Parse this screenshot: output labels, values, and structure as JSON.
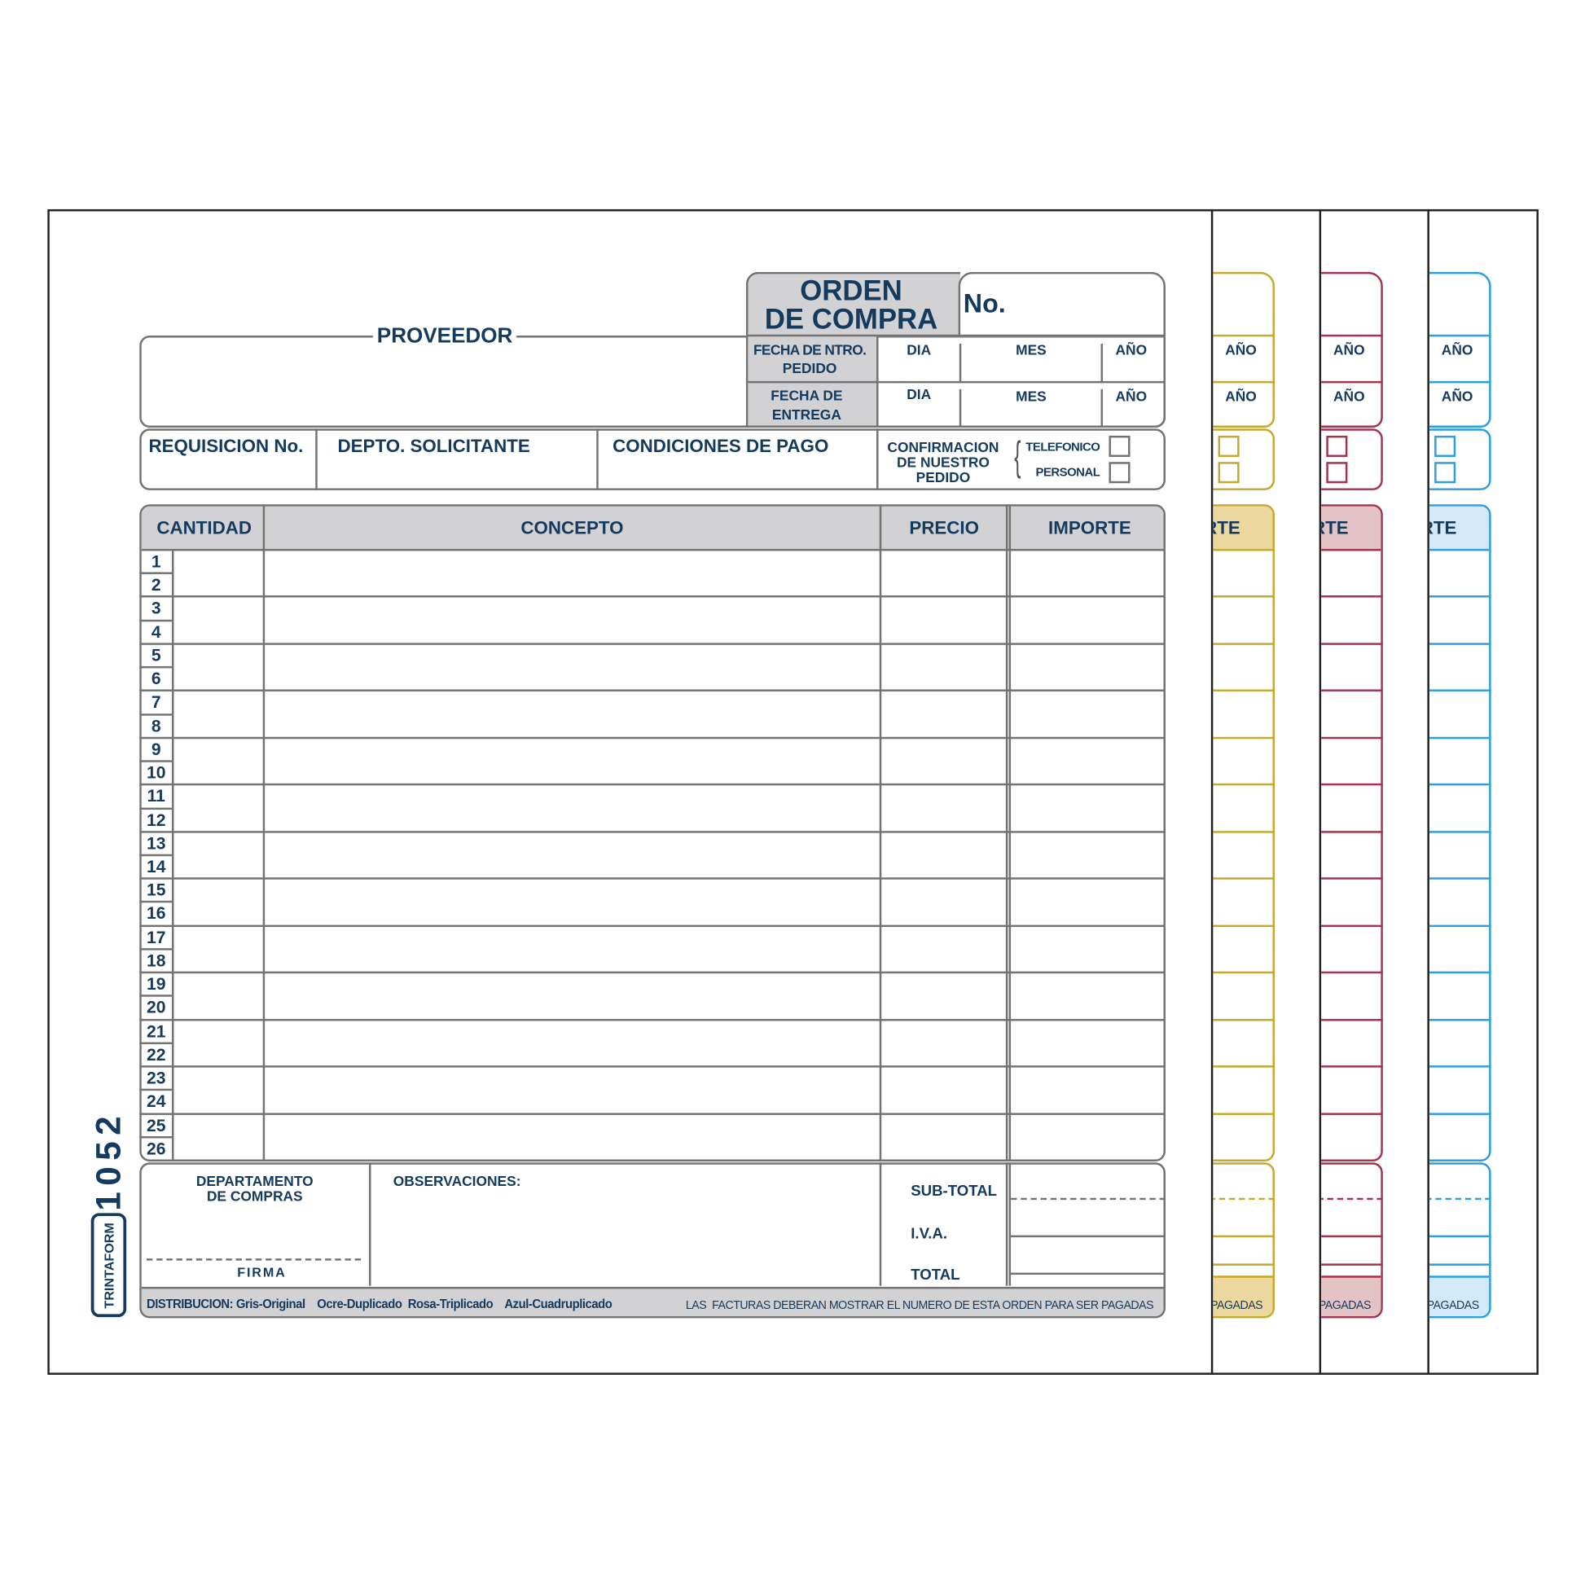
{
  "form": {
    "supplier_label": "PROVEEDOR",
    "title_line1": "ORDEN",
    "title_line2": "DE COMPRA",
    "number_label": "No.",
    "order_date_label_1": "FECHA DE NTRO.",
    "order_date_label_2": "PEDIDO",
    "delivery_date_label_1": "FECHA DE",
    "delivery_date_label_2": "ENTREGA",
    "day_label": "DIA",
    "month_label": "MES",
    "year_label": "AÑO",
    "requisition_label": "REQUISICION No.",
    "department_label": "DEPTO. SOLICITANTE",
    "payment_terms_label": "CONDICIONES DE PAGO",
    "confirmation_label_1": "CONFIRMACION",
    "confirmation_label_2": "DE NUESTRO",
    "confirmation_label_3": "PEDIDO",
    "phone_label": "TELEFONICO",
    "personal_label": "PERSONAL",
    "form_number": "1052",
    "brand": "TRINTAFORM"
  },
  "table": {
    "headers": [
      "CANTIDAD",
      "CONCEPTO",
      "PRECIO",
      "IMPORTE"
    ],
    "row_numbers": [
      "1",
      "2",
      "3",
      "4",
      "5",
      "6",
      "7",
      "8",
      "9",
      "10",
      "11",
      "12",
      "13",
      "14",
      "15",
      "16",
      "17",
      "18",
      "19",
      "20",
      "21",
      "22",
      "23",
      "24",
      "25",
      "26"
    ]
  },
  "footer": {
    "purchasing_dept_1": "DEPARTAMENTO",
    "purchasing_dept_2": "DE COMPRAS",
    "signature_label": "FIRMA",
    "observations_label": "OBSERVACIONES:",
    "subtotal_label": "SUB-TOTAL",
    "tax_label": "I.V.A.",
    "total_label": "TOTAL",
    "distribution": "DISTRIBUCION: Gris-Original    Ocre-Duplicado  Rosa-Triplicado    Azul-Cuadruplicado",
    "notice": "LAS  FACTURAS DEBERAN MOSTRAR EL NUMERO DE ESTA ORDEN PARA SER PAGADAS"
  },
  "copies": [
    {
      "name": "ocre",
      "color": "#c6a82e",
      "fill": "#ecd89e"
    },
    {
      "name": "rosa",
      "color": "#a3334f",
      "fill": "#e4c3c6"
    },
    {
      "name": "azul",
      "color": "#2b9fe0",
      "fill": "#d3e9f7"
    }
  ],
  "colors": {
    "text": "#143a5e",
    "border": "#737373",
    "header_fill": "#d2d2d4"
  }
}
